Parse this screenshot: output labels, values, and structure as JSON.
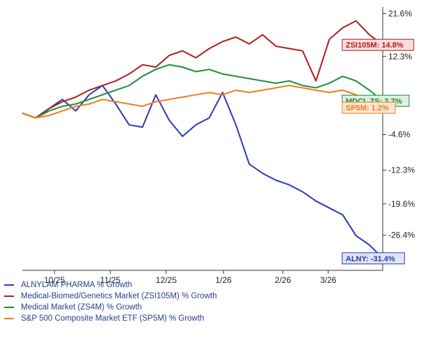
{
  "chart_data": {
    "type": "line",
    "x_ticks": [
      "10/25",
      "11/25",
      "12/25",
      "1/26",
      "2/26",
      "3/26"
    ],
    "y_ticks": [
      "21.6%",
      "12.3%",
      "-4.6%",
      "-12.3%",
      "-19.6%",
      "-26.4%"
    ],
    "ylim": [
      -34,
      23
    ],
    "grid": false,
    "legend_placement": "bottom-left",
    "series": [
      {
        "name": "ALNYLAM PHARMA % Growth",
        "badge": "ALNY: -31.4%",
        "color": "#2a3bb0",
        "badge_bg": "#dfe4f7",
        "x": [
          0,
          1,
          2,
          3,
          4,
          5,
          6,
          7,
          8,
          9,
          10,
          11,
          12,
          13,
          14,
          15,
          16,
          17,
          18,
          19,
          20,
          21,
          22,
          23,
          24,
          25,
          26,
          27
        ],
        "values": [
          0.0,
          -1.0,
          1.0,
          3.0,
          0.5,
          4.0,
          6.0,
          2.0,
          -2.5,
          -3.0,
          4.0,
          -1.5,
          -5.0,
          -2.5,
          -1.0,
          4.5,
          -2.5,
          -11.0,
          -13.0,
          -14.5,
          -15.5,
          -17.0,
          -19.0,
          -20.5,
          -22.0,
          -26.5,
          -28.5,
          -31.4
        ]
      },
      {
        "name": "Medical-Biomed/Genetics Market (ZSI105M) % Growth",
        "badge": "ZSI105M: 14.8%",
        "color": "#b01d1d",
        "badge_bg": "#f6dede",
        "x": [
          0,
          1,
          2,
          3,
          4,
          5,
          6,
          7,
          8,
          9,
          10,
          11,
          12,
          13,
          14,
          15,
          16,
          17,
          18,
          19,
          20,
          21,
          22,
          23,
          24,
          25,
          26,
          27
        ],
        "values": [
          0.0,
          -1.0,
          1.0,
          2.5,
          3.5,
          5.0,
          6.0,
          7.0,
          8.5,
          10.5,
          10.0,
          12.5,
          13.5,
          12.0,
          14.0,
          15.5,
          16.5,
          15.0,
          17.0,
          14.5,
          14.0,
          13.5,
          7.0,
          16.0,
          18.5,
          20.0,
          17.0,
          14.8
        ]
      },
      {
        "name": "Medical Market (ZS4M) % Growth",
        "badge": "MDCL ZS: 2.7%",
        "color": "#1f8a3a",
        "badge_bg": "#dcefdf",
        "x": [
          0,
          1,
          2,
          3,
          4,
          5,
          6,
          7,
          8,
          9,
          10,
          11,
          12,
          13,
          14,
          15,
          16,
          17,
          18,
          19,
          20,
          21,
          22,
          23,
          24,
          25,
          26,
          27
        ],
        "values": [
          0.0,
          -1.0,
          0.5,
          1.5,
          2.0,
          3.0,
          4.0,
          5.0,
          6.0,
          8.0,
          9.5,
          10.5,
          10.0,
          9.0,
          9.5,
          8.5,
          8.0,
          7.5,
          7.0,
          6.5,
          7.0,
          6.0,
          5.5,
          6.5,
          8.0,
          7.0,
          5.0,
          2.7
        ]
      },
      {
        "name": "S&P 500 Composite Market ETF (SP5M) % Growth",
        "badge": "SP5M: 1.2%",
        "color": "#f27a1a",
        "badge_bg": "#fde6d3",
        "x": [
          0,
          1,
          2,
          3,
          4,
          5,
          6,
          7,
          8,
          9,
          10,
          11,
          12,
          13,
          14,
          15,
          16,
          17,
          18,
          19,
          20,
          21,
          22,
          23,
          24,
          25,
          26,
          27
        ],
        "values": [
          0.0,
          -1.0,
          -0.5,
          0.5,
          1.5,
          2.0,
          3.0,
          2.5,
          2.0,
          1.5,
          2.5,
          3.0,
          3.5,
          4.0,
          4.5,
          4.0,
          5.0,
          4.5,
          5.0,
          5.5,
          6.0,
          5.5,
          5.0,
          4.5,
          5.0,
          4.0,
          2.5,
          1.2
        ]
      }
    ]
  }
}
